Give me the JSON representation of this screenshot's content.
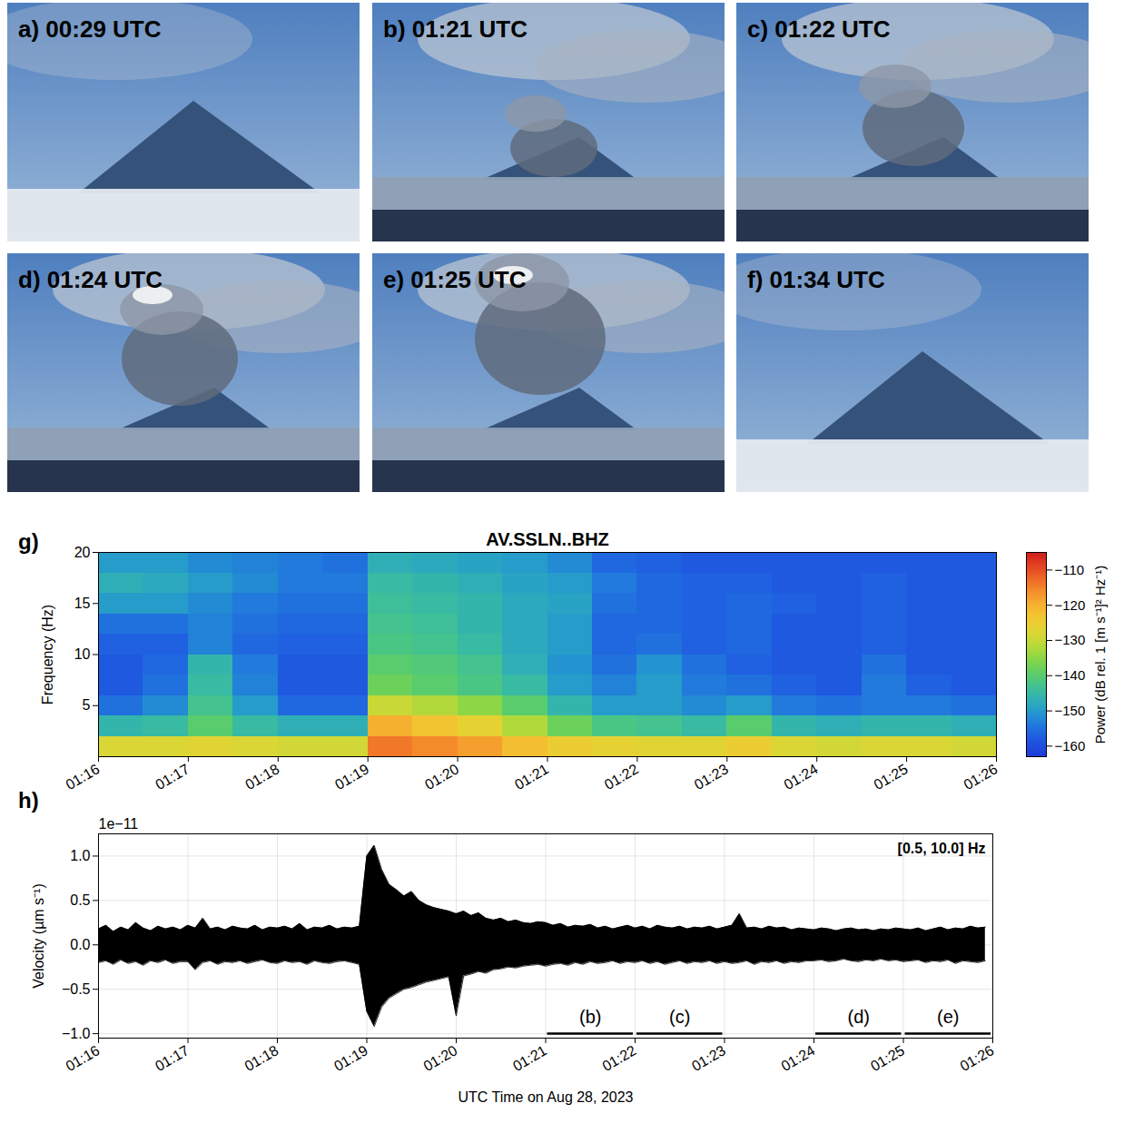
{
  "photos": [
    {
      "label": "a) 00:29 UTC"
    },
    {
      "label": "b) 01:21 UTC"
    },
    {
      "label": "c) 01:22 UTC"
    },
    {
      "label": "d) 01:24 UTC"
    },
    {
      "label": "e) 01:25 UTC"
    },
    {
      "label": "f) 01:34 UTC"
    }
  ],
  "chart_data": [
    {
      "type": "heatmap",
      "panel": "g)",
      "title": "AV.SSLN..BHZ",
      "y_label": "Frequency (Hz)",
      "time_bins": [
        "01:16:00",
        "01:16:30",
        "01:17:00",
        "01:17:30",
        "01:18:00",
        "01:18:30",
        "01:19:00",
        "01:19:30",
        "01:20:00",
        "01:20:30",
        "01:21:00",
        "01:21:30",
        "01:22:00",
        "01:22:30",
        "01:23:00",
        "01:23:30",
        "01:24:00",
        "01:24:30",
        "01:25:00",
        "01:25:30",
        "01:26:00"
      ],
      "frequency_bins": [
        0,
        2,
        4,
        6,
        8,
        10,
        12,
        14,
        16,
        18,
        20
      ],
      "power": [
        [
          -128,
          -128,
          -127,
          -128,
          -129,
          -129,
          -114,
          -116,
          -118,
          -122,
          -125,
          -126,
          -127,
          -127,
          -125,
          -128,
          -129,
          -128,
          -128,
          -129
        ],
        [
          -146,
          -145,
          -140,
          -145,
          -147,
          -147,
          -120,
          -123,
          -126,
          -132,
          -138,
          -142,
          -143,
          -145,
          -140,
          -146,
          -147,
          -146,
          -146,
          -147
        ],
        [
          -155,
          -152,
          -143,
          -150,
          -156,
          -156,
          -130,
          -132,
          -135,
          -140,
          -146,
          -150,
          -150,
          -152,
          -150,
          -154,
          -155,
          -154,
          -154,
          -155
        ],
        [
          -158,
          -155,
          -145,
          -153,
          -158,
          -158,
          -138,
          -140,
          -142,
          -145,
          -150,
          -153,
          -150,
          -154,
          -155,
          -157,
          -158,
          -154,
          -157,
          -158
        ],
        [
          -158,
          -156,
          -146,
          -154,
          -158,
          -158,
          -140,
          -141,
          -143,
          -147,
          -151,
          -155,
          -151,
          -155,
          -157,
          -158,
          -158,
          -155,
          -158,
          -158
        ],
        [
          -157,
          -157,
          -153,
          -156,
          -157,
          -157,
          -142,
          -143,
          -145,
          -148,
          -150,
          -156,
          -155,
          -157,
          -156,
          -158,
          -158,
          -157,
          -158,
          -158
        ],
        [
          -155,
          -155,
          -153,
          -155,
          -156,
          -156,
          -143,
          -144,
          -146,
          -148,
          -150,
          -156,
          -156,
          -157,
          -156,
          -158,
          -158,
          -157,
          -158,
          -158
        ],
        [
          -150,
          -150,
          -152,
          -154,
          -155,
          -155,
          -144,
          -145,
          -146,
          -148,
          -149,
          -155,
          -156,
          -157,
          -156,
          -157,
          -158,
          -157,
          -158,
          -158
        ],
        [
          -147,
          -148,
          -150,
          -152,
          -154,
          -154,
          -145,
          -146,
          -147,
          -149,
          -150,
          -154,
          -156,
          -157,
          -157,
          -158,
          -158,
          -157,
          -158,
          -158
        ],
        [
          -150,
          -150,
          -152,
          -153,
          -154,
          -155,
          -147,
          -148,
          -149,
          -150,
          -152,
          -156,
          -157,
          -158,
          -158,
          -158,
          -158,
          -158,
          -158,
          -158
        ]
      ],
      "xlim": [
        "01:16",
        "01:26"
      ],
      "xticks": [
        "01:16",
        "01:17",
        "01:18",
        "01:19",
        "01:20",
        "01:21",
        "01:22",
        "01:23",
        "01:24",
        "01:25",
        "01:26"
      ],
      "ylim": [
        0,
        20
      ],
      "yticks": [
        5,
        10,
        15,
        20
      ],
      "colorbar": {
        "label": "Power (dB rel. 1 [m s⁻¹]² Hz⁻¹)",
        "range": [
          -163,
          -105
        ],
        "ticks": [
          {
            "value": -160,
            "label": "−160"
          },
          {
            "value": -150,
            "label": "−150"
          },
          {
            "value": -140,
            "label": "−140"
          },
          {
            "value": -130,
            "label": "−130"
          },
          {
            "value": -120,
            "label": "−120"
          },
          {
            "value": -110,
            "label": "−110"
          }
        ]
      }
    },
    {
      "type": "area",
      "panel": "h)",
      "x_label": "UTC Time on Aug 28, 2023",
      "y_label": "Velocity (µm s⁻¹)",
      "y_multiplier": "1e−11",
      "annotation": "[0.5, 10.0] Hz",
      "color": "#000000",
      "grid": true,
      "x": [
        "01:16:00",
        "01:16:05",
        "01:16:10",
        "01:16:15",
        "01:16:20",
        "01:16:25",
        "01:16:30",
        "01:16:35",
        "01:16:40",
        "01:16:45",
        "01:16:50",
        "01:16:55",
        "01:17:00",
        "01:17:05",
        "01:17:10",
        "01:17:15",
        "01:17:20",
        "01:17:25",
        "01:17:30",
        "01:17:35",
        "01:17:40",
        "01:17:45",
        "01:17:50",
        "01:17:55",
        "01:18:00",
        "01:18:05",
        "01:18:10",
        "01:18:15",
        "01:18:20",
        "01:18:25",
        "01:18:30",
        "01:18:35",
        "01:18:40",
        "01:18:45",
        "01:18:50",
        "01:18:55",
        "01:19:00",
        "01:19:05",
        "01:19:10",
        "01:19:15",
        "01:19:20",
        "01:19:25",
        "01:19:30",
        "01:19:35",
        "01:19:40",
        "01:19:45",
        "01:19:50",
        "01:19:55",
        "01:20:00",
        "01:20:05",
        "01:20:10",
        "01:20:15",
        "01:20:20",
        "01:20:25",
        "01:20:30",
        "01:20:35",
        "01:20:40",
        "01:20:45",
        "01:20:50",
        "01:20:55",
        "01:21:00",
        "01:21:05",
        "01:21:10",
        "01:21:15",
        "01:21:20",
        "01:21:25",
        "01:21:30",
        "01:21:35",
        "01:21:40",
        "01:21:45",
        "01:21:50",
        "01:21:55",
        "01:22:00",
        "01:22:05",
        "01:22:10",
        "01:22:15",
        "01:22:20",
        "01:22:25",
        "01:22:30",
        "01:22:35",
        "01:22:40",
        "01:22:45",
        "01:22:50",
        "01:22:55",
        "01:23:00",
        "01:23:05",
        "01:23:10",
        "01:23:15",
        "01:23:20",
        "01:23:25",
        "01:23:30",
        "01:23:35",
        "01:23:40",
        "01:23:45",
        "01:23:50",
        "01:23:55",
        "01:24:00",
        "01:24:05",
        "01:24:10",
        "01:24:15",
        "01:24:20",
        "01:24:25",
        "01:24:30",
        "01:24:35",
        "01:24:40",
        "01:24:45",
        "01:24:50",
        "01:24:55",
        "01:25:00",
        "01:25:05",
        "01:25:10",
        "01:25:15",
        "01:25:20",
        "01:25:25",
        "01:25:30",
        "01:25:35",
        "01:25:40",
        "01:25:45",
        "01:25:50",
        "01:25:55"
      ],
      "upper": [
        0.18,
        0.22,
        0.15,
        0.2,
        0.17,
        0.25,
        0.19,
        0.16,
        0.21,
        0.18,
        0.2,
        0.17,
        0.22,
        0.19,
        0.3,
        0.18,
        0.2,
        0.17,
        0.21,
        0.19,
        0.18,
        0.22,
        0.17,
        0.2,
        0.19,
        0.21,
        0.18,
        0.24,
        0.17,
        0.2,
        0.19,
        0.22,
        0.18,
        0.2,
        0.19,
        0.21,
        1.0,
        1.12,
        0.85,
        0.68,
        0.62,
        0.55,
        0.6,
        0.5,
        0.45,
        0.42,
        0.4,
        0.38,
        0.35,
        0.38,
        0.33,
        0.36,
        0.3,
        0.28,
        0.3,
        0.26,
        0.28,
        0.25,
        0.24,
        0.26,
        0.25,
        0.22,
        0.24,
        0.2,
        0.22,
        0.21,
        0.23,
        0.19,
        0.21,
        0.18,
        0.2,
        0.22,
        0.19,
        0.21,
        0.18,
        0.22,
        0.2,
        0.19,
        0.21,
        0.18,
        0.2,
        0.19,
        0.21,
        0.18,
        0.2,
        0.22,
        0.35,
        0.19,
        0.2,
        0.18,
        0.21,
        0.19,
        0.2,
        0.17,
        0.19,
        0.18,
        0.17,
        0.19,
        0.18,
        0.16,
        0.18,
        0.19,
        0.17,
        0.18,
        0.16,
        0.18,
        0.17,
        0.19,
        0.18,
        0.17,
        0.19,
        0.16,
        0.18,
        0.2,
        0.17,
        0.19,
        0.18,
        0.21,
        0.19,
        0.2
      ],
      "lower": [
        -0.2,
        -0.18,
        -0.22,
        -0.17,
        -0.21,
        -0.19,
        -0.23,
        -0.18,
        -0.2,
        -0.17,
        -0.21,
        -0.19,
        -0.19,
        -0.28,
        -0.2,
        -0.18,
        -0.22,
        -0.19,
        -0.2,
        -0.18,
        -0.21,
        -0.19,
        -0.17,
        -0.2,
        -0.21,
        -0.18,
        -0.2,
        -0.19,
        -0.22,
        -0.18,
        -0.2,
        -0.21,
        -0.19,
        -0.18,
        -0.2,
        -0.22,
        -0.75,
        -0.92,
        -0.7,
        -0.6,
        -0.55,
        -0.5,
        -0.48,
        -0.45,
        -0.42,
        -0.4,
        -0.38,
        -0.36,
        -0.8,
        -0.35,
        -0.33,
        -0.3,
        -0.32,
        -0.28,
        -0.27,
        -0.25,
        -0.26,
        -0.24,
        -0.23,
        -0.22,
        -0.24,
        -0.22,
        -0.21,
        -0.23,
        -0.2,
        -0.22,
        -0.19,
        -0.21,
        -0.2,
        -0.18,
        -0.21,
        -0.19,
        -0.2,
        -0.18,
        -0.21,
        -0.19,
        -0.22,
        -0.2,
        -0.18,
        -0.21,
        -0.19,
        -0.2,
        -0.18,
        -0.21,
        -0.19,
        -0.21,
        -0.2,
        -0.18,
        -0.22,
        -0.19,
        -0.2,
        -0.18,
        -0.21,
        -0.19,
        -0.2,
        -0.18,
        -0.18,
        -0.17,
        -0.19,
        -0.18,
        -0.16,
        -0.18,
        -0.19,
        -0.17,
        -0.18,
        -0.16,
        -0.18,
        -0.17,
        -0.19,
        -0.18,
        -0.17,
        -0.2,
        -0.18,
        -0.19,
        -0.17,
        -0.21,
        -0.18,
        -0.19,
        -0.2,
        -0.18
      ],
      "xlim": [
        "01:16",
        "01:26"
      ],
      "xticks": [
        "01:16",
        "01:17",
        "01:18",
        "01:19",
        "01:20",
        "01:21",
        "01:22",
        "01:23",
        "01:24",
        "01:25",
        "01:26"
      ],
      "ylim": [
        -1.05,
        1.25
      ],
      "yticks": [
        {
          "value": -1.0,
          "label": "−1.0"
        },
        {
          "value": -0.5,
          "label": "−0.5"
        },
        {
          "value": 0,
          "label": "0.0"
        },
        {
          "value": 0.5,
          "label": "0.5"
        },
        {
          "value": 1.0,
          "label": "1.0"
        }
      ],
      "segments": [
        {
          "label": "(b)",
          "start": "01:21",
          "end": "01:22",
          "y": -1.0
        },
        {
          "label": "(c)",
          "start": "01:22",
          "end": "01:23",
          "y": -1.0
        },
        {
          "label": "(d)",
          "start": "01:24",
          "end": "01:25",
          "y": -1.0
        },
        {
          "label": "(e)",
          "start": "01:25",
          "end": "01:26",
          "y": -1.0
        }
      ]
    }
  ]
}
